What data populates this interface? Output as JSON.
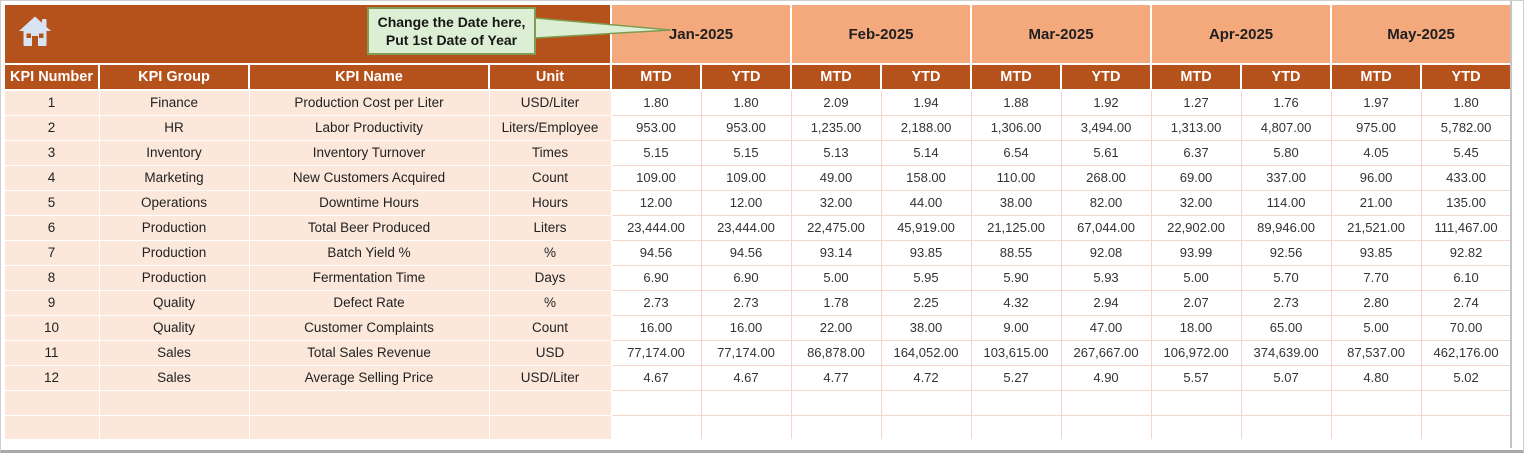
{
  "banner": {
    "callout": {
      "line1": "Change the Date here,",
      "line2": "Put 1st Date of Year"
    }
  },
  "columns": {
    "left_headers": [
      "KPI Number",
      "KPI Group",
      "KPI Name",
      "Unit"
    ],
    "months": [
      "Jan-2025",
      "Feb-2025",
      "Mar-2025",
      "Apr-2025",
      "May-2025"
    ],
    "sub_headers": [
      "MTD",
      "YTD"
    ]
  },
  "rows": [
    {
      "number": "1",
      "group": "Finance",
      "name": "Production Cost per Liter",
      "unit": "USD/Liter",
      "values": [
        "1.80",
        "1.80",
        "2.09",
        "1.94",
        "1.88",
        "1.92",
        "1.27",
        "1.76",
        "1.97",
        "1.80"
      ]
    },
    {
      "number": "2",
      "group": "HR",
      "name": "Labor Productivity",
      "unit": "Liters/Employee",
      "values": [
        "953.00",
        "953.00",
        "1,235.00",
        "2,188.00",
        "1,306.00",
        "3,494.00",
        "1,313.00",
        "4,807.00",
        "975.00",
        "5,782.00"
      ]
    },
    {
      "number": "3",
      "group": "Inventory",
      "name": "Inventory Turnover",
      "unit": "Times",
      "values": [
        "5.15",
        "5.15",
        "5.13",
        "5.14",
        "6.54",
        "5.61",
        "6.37",
        "5.80",
        "4.05",
        "5.45"
      ]
    },
    {
      "number": "4",
      "group": "Marketing",
      "name": "New Customers Acquired",
      "unit": "Count",
      "values": [
        "109.00",
        "109.00",
        "49.00",
        "158.00",
        "110.00",
        "268.00",
        "69.00",
        "337.00",
        "96.00",
        "433.00"
      ]
    },
    {
      "number": "5",
      "group": "Operations",
      "name": "Downtime Hours",
      "unit": "Hours",
      "values": [
        "12.00",
        "12.00",
        "32.00",
        "44.00",
        "38.00",
        "82.00",
        "32.00",
        "114.00",
        "21.00",
        "135.00"
      ]
    },
    {
      "number": "6",
      "group": "Production",
      "name": "Total Beer Produced",
      "unit": "Liters",
      "values": [
        "23,444.00",
        "23,444.00",
        "22,475.00",
        "45,919.00",
        "21,125.00",
        "67,044.00",
        "22,902.00",
        "89,946.00",
        "21,521.00",
        "111,467.00"
      ]
    },
    {
      "number": "7",
      "group": "Production",
      "name": "Batch Yield %",
      "unit": "%",
      "values": [
        "94.56",
        "94.56",
        "93.14",
        "93.85",
        "88.55",
        "92.08",
        "93.99",
        "92.56",
        "93.85",
        "92.82"
      ]
    },
    {
      "number": "8",
      "group": "Production",
      "name": "Fermentation Time",
      "unit": "Days",
      "values": [
        "6.90",
        "6.90",
        "5.00",
        "5.95",
        "5.90",
        "5.93",
        "5.00",
        "5.70",
        "7.70",
        "6.10"
      ]
    },
    {
      "number": "9",
      "group": "Quality",
      "name": "Defect Rate",
      "unit": "%",
      "values": [
        "2.73",
        "2.73",
        "1.78",
        "2.25",
        "4.32",
        "2.94",
        "2.07",
        "2.73",
        "2.80",
        "2.74"
      ]
    },
    {
      "number": "10",
      "group": "Quality",
      "name": "Customer Complaints",
      "unit": "Count",
      "values": [
        "16.00",
        "16.00",
        "22.00",
        "38.00",
        "9.00",
        "47.00",
        "18.00",
        "65.00",
        "5.00",
        "70.00"
      ]
    },
    {
      "number": "11",
      "group": "Sales",
      "name": "Total Sales Revenue",
      "unit": "USD",
      "values": [
        "77,174.00",
        "77,174.00",
        "86,878.00",
        "164,052.00",
        "103,615.00",
        "267,667.00",
        "106,972.00",
        "374,639.00",
        "87,537.00",
        "462,176.00"
      ]
    },
    {
      "number": "12",
      "group": "Sales",
      "name": "Average Selling Price",
      "unit": "USD/Liter",
      "values": [
        "4.67",
        "4.67",
        "4.77",
        "4.72",
        "5.27",
        "4.90",
        "5.57",
        "5.07",
        "4.80",
        "5.02"
      ]
    }
  ],
  "empty_row_count": 2,
  "colors": {
    "header_orange": "#B5511B",
    "month_salmon": "#F4A97C",
    "row_peach": "#FCE8DB",
    "grid_line": "#F3D8C9",
    "callout_green": "#DCEFD4",
    "callout_border": "#7F9C52",
    "home_icon_fill": "#D8E4F2"
  }
}
